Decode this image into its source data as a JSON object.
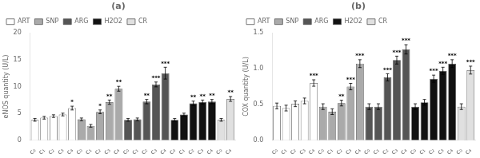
{
  "chart_data": [
    {
      "type": "bar",
      "title": "(a)",
      "y_label": "eNOS quantity (U/L)",
      "categories": [
        "c₀",
        "c₁",
        "c₂",
        "c₃",
        "c₄",
        "c₀",
        "c₁",
        "c₂",
        "c₃",
        "c₄",
        "c₀",
        "c₁",
        "c₂",
        "c₃",
        "c₄",
        "c₀",
        "c₁",
        "c₂",
        "c₃",
        "c₄",
        "c₀",
        "c₄"
      ],
      "series": [
        {
          "name": "ART",
          "color": "#ffffff",
          "values": [
            3.8,
            4.2,
            4.5,
            4.8,
            6.0,
            null,
            null,
            null,
            null,
            null,
            null,
            null,
            null,
            null,
            null,
            null,
            null,
            null,
            null,
            null,
            null,
            null
          ],
          "errors": [
            0.25,
            0.25,
            0.25,
            0.25,
            0.35,
            null,
            null,
            null,
            null,
            null,
            null,
            null,
            null,
            null,
            null,
            null,
            null,
            null,
            null,
            null,
            null,
            null
          ],
          "sig": [
            null,
            null,
            null,
            null,
            "*",
            null,
            null,
            null,
            null,
            null,
            null,
            null,
            null,
            null,
            null,
            null,
            null,
            null,
            null,
            null,
            null,
            null
          ]
        },
        {
          "name": "SNP",
          "color": "#aaaaaa",
          "values": [
            null,
            null,
            null,
            null,
            null,
            3.9,
            2.7,
            5.3,
            7.1,
            9.6,
            null,
            null,
            null,
            null,
            null,
            null,
            null,
            null,
            null,
            null,
            null,
            null
          ],
          "errors": [
            null,
            null,
            null,
            null,
            null,
            0.25,
            0.25,
            0.35,
            0.4,
            0.45,
            null,
            null,
            null,
            null,
            null,
            null,
            null,
            null,
            null,
            null,
            null,
            null
          ],
          "sig": [
            null,
            null,
            null,
            null,
            null,
            null,
            null,
            "*",
            "**",
            "**",
            null,
            null,
            null,
            null,
            null,
            null,
            null,
            null,
            null,
            null,
            null,
            null
          ]
        },
        {
          "name": "ARG",
          "color": "#555555",
          "values": [
            null,
            null,
            null,
            null,
            null,
            null,
            null,
            null,
            null,
            null,
            3.8,
            3.9,
            7.2,
            10.4,
            12.5,
            null,
            null,
            null,
            null,
            null,
            null,
            null
          ],
          "errors": [
            null,
            null,
            null,
            null,
            null,
            null,
            null,
            null,
            null,
            null,
            0.25,
            0.25,
            0.4,
            0.45,
            1.1,
            null,
            null,
            null,
            null,
            null,
            null,
            null
          ],
          "sig": [
            null,
            null,
            null,
            null,
            null,
            null,
            null,
            null,
            null,
            null,
            null,
            null,
            "**",
            "***",
            "***",
            null,
            null,
            null,
            null,
            null,
            null,
            null
          ]
        },
        {
          "name": "H2O2",
          "color": "#111111",
          "values": [
            null,
            null,
            null,
            null,
            null,
            null,
            null,
            null,
            null,
            null,
            null,
            null,
            null,
            null,
            null,
            3.8,
            4.8,
            6.9,
            7.1,
            7.2,
            null,
            null
          ],
          "errors": [
            null,
            null,
            null,
            null,
            null,
            null,
            null,
            null,
            null,
            null,
            null,
            null,
            null,
            null,
            null,
            0.25,
            0.25,
            0.4,
            0.4,
            0.4,
            null,
            null
          ],
          "sig": [
            null,
            null,
            null,
            null,
            null,
            null,
            null,
            null,
            null,
            null,
            null,
            null,
            null,
            null,
            null,
            null,
            null,
            "**",
            "**",
            "**",
            null,
            null
          ]
        },
        {
          "name": "CR",
          "color": "#e0e0e0",
          "values": [
            null,
            null,
            null,
            null,
            null,
            null,
            null,
            null,
            null,
            null,
            null,
            null,
            null,
            null,
            null,
            null,
            null,
            null,
            null,
            null,
            3.8,
            7.7
          ],
          "errors": [
            null,
            null,
            null,
            null,
            null,
            null,
            null,
            null,
            null,
            null,
            null,
            null,
            null,
            null,
            null,
            null,
            null,
            null,
            null,
            null,
            0.25,
            0.45
          ],
          "sig": [
            null,
            null,
            null,
            null,
            null,
            null,
            null,
            null,
            null,
            null,
            null,
            null,
            null,
            null,
            null,
            null,
            null,
            null,
            null,
            null,
            null,
            "**"
          ]
        }
      ],
      "ylim": [
        0,
        20
      ],
      "yticks": [
        0,
        5,
        10,
        15,
        20
      ],
      "grid": false,
      "legend": "upper left"
    },
    {
      "type": "bar",
      "title": "(b)",
      "y_label": "COX quantity (U/L)",
      "categories": [
        "c₀",
        "c₁",
        "c₂",
        "c₃",
        "c₄",
        "c₀",
        "c₁",
        "c₂",
        "c₃",
        "c₄",
        "c₀",
        "c₁",
        "c₂",
        "c₃",
        "c₄",
        "c₀",
        "c₁",
        "c₂",
        "c₃",
        "c₄",
        "c₀",
        "c₄"
      ],
      "series": [
        {
          "name": "ART",
          "color": "#ffffff",
          "values": [
            0.48,
            0.45,
            0.51,
            0.55,
            0.8,
            null,
            null,
            null,
            null,
            null,
            null,
            null,
            null,
            null,
            null,
            null,
            null,
            null,
            null,
            null,
            null,
            null
          ],
          "errors": [
            0.04,
            0.04,
            0.04,
            0.04,
            0.045,
            null,
            null,
            null,
            null,
            null,
            null,
            null,
            null,
            null,
            null,
            null,
            null,
            null,
            null,
            null,
            null,
            null
          ],
          "sig": [
            null,
            null,
            null,
            null,
            "***",
            null,
            null,
            null,
            null,
            null,
            null,
            null,
            null,
            null,
            null,
            null,
            null,
            null,
            null,
            null,
            null,
            null
          ]
        },
        {
          "name": "SNP",
          "color": "#aaaaaa",
          "values": [
            null,
            null,
            null,
            null,
            null,
            0.47,
            0.4,
            0.52,
            0.75,
            1.07,
            null,
            null,
            null,
            null,
            null,
            null,
            null,
            null,
            null,
            null,
            null,
            null
          ],
          "errors": [
            null,
            null,
            null,
            null,
            null,
            0.04,
            0.04,
            0.04,
            0.045,
            0.055,
            null,
            null,
            null,
            null,
            null,
            null,
            null,
            null,
            null,
            null,
            null,
            null
          ],
          "sig": [
            null,
            null,
            null,
            null,
            null,
            null,
            null,
            "**",
            "***",
            "***",
            null,
            null,
            null,
            null,
            null,
            null,
            null,
            null,
            null,
            null,
            null,
            null
          ]
        },
        {
          "name": "ARG",
          "color": "#555555",
          "values": [
            null,
            null,
            null,
            null,
            null,
            null,
            null,
            null,
            null,
            null,
            0.47,
            0.47,
            0.88,
            1.12,
            1.27,
            null,
            null,
            null,
            null,
            null,
            null,
            null
          ],
          "errors": [
            null,
            null,
            null,
            null,
            null,
            null,
            null,
            null,
            null,
            null,
            0.04,
            0.04,
            0.05,
            0.055,
            0.065,
            null,
            null,
            null,
            null,
            null,
            null,
            null
          ],
          "sig": [
            null,
            null,
            null,
            null,
            null,
            null,
            null,
            null,
            null,
            null,
            null,
            null,
            "***",
            "***",
            "***",
            null,
            null,
            null,
            null,
            null,
            null,
            null
          ]
        },
        {
          "name": "H2O2",
          "color": "#111111",
          "values": [
            null,
            null,
            null,
            null,
            null,
            null,
            null,
            null,
            null,
            null,
            null,
            null,
            null,
            null,
            null,
            0.47,
            0.53,
            0.86,
            0.97,
            1.07,
            null,
            null
          ],
          "errors": [
            null,
            null,
            null,
            null,
            null,
            null,
            null,
            null,
            null,
            null,
            null,
            null,
            null,
            null,
            null,
            0.04,
            0.04,
            0.05,
            0.05,
            0.055,
            null,
            null
          ],
          "sig": [
            null,
            null,
            null,
            null,
            null,
            null,
            null,
            null,
            null,
            null,
            null,
            null,
            null,
            null,
            null,
            null,
            null,
            "***",
            "***",
            "***",
            null,
            null
          ]
        },
        {
          "name": "CR",
          "color": "#e0e0e0",
          "values": [
            null,
            null,
            null,
            null,
            null,
            null,
            null,
            null,
            null,
            null,
            null,
            null,
            null,
            null,
            null,
            null,
            null,
            null,
            null,
            null,
            0.47,
            0.98
          ],
          "errors": [
            null,
            null,
            null,
            null,
            null,
            null,
            null,
            null,
            null,
            null,
            null,
            null,
            null,
            null,
            null,
            null,
            null,
            null,
            null,
            null,
            0.04,
            0.055
          ],
          "sig": [
            null,
            null,
            null,
            null,
            null,
            null,
            null,
            null,
            null,
            null,
            null,
            null,
            null,
            null,
            null,
            null,
            null,
            null,
            null,
            null,
            null,
            "***"
          ]
        }
      ],
      "ylim": [
        0,
        1.5
      ],
      "yticks": [
        {
          "value": 0,
          "label": "0.0"
        },
        0.5,
        {
          "value": 1,
          "label": "1.0"
        },
        1.5
      ],
      "grid": false,
      "legend": "upper left"
    }
  ]
}
